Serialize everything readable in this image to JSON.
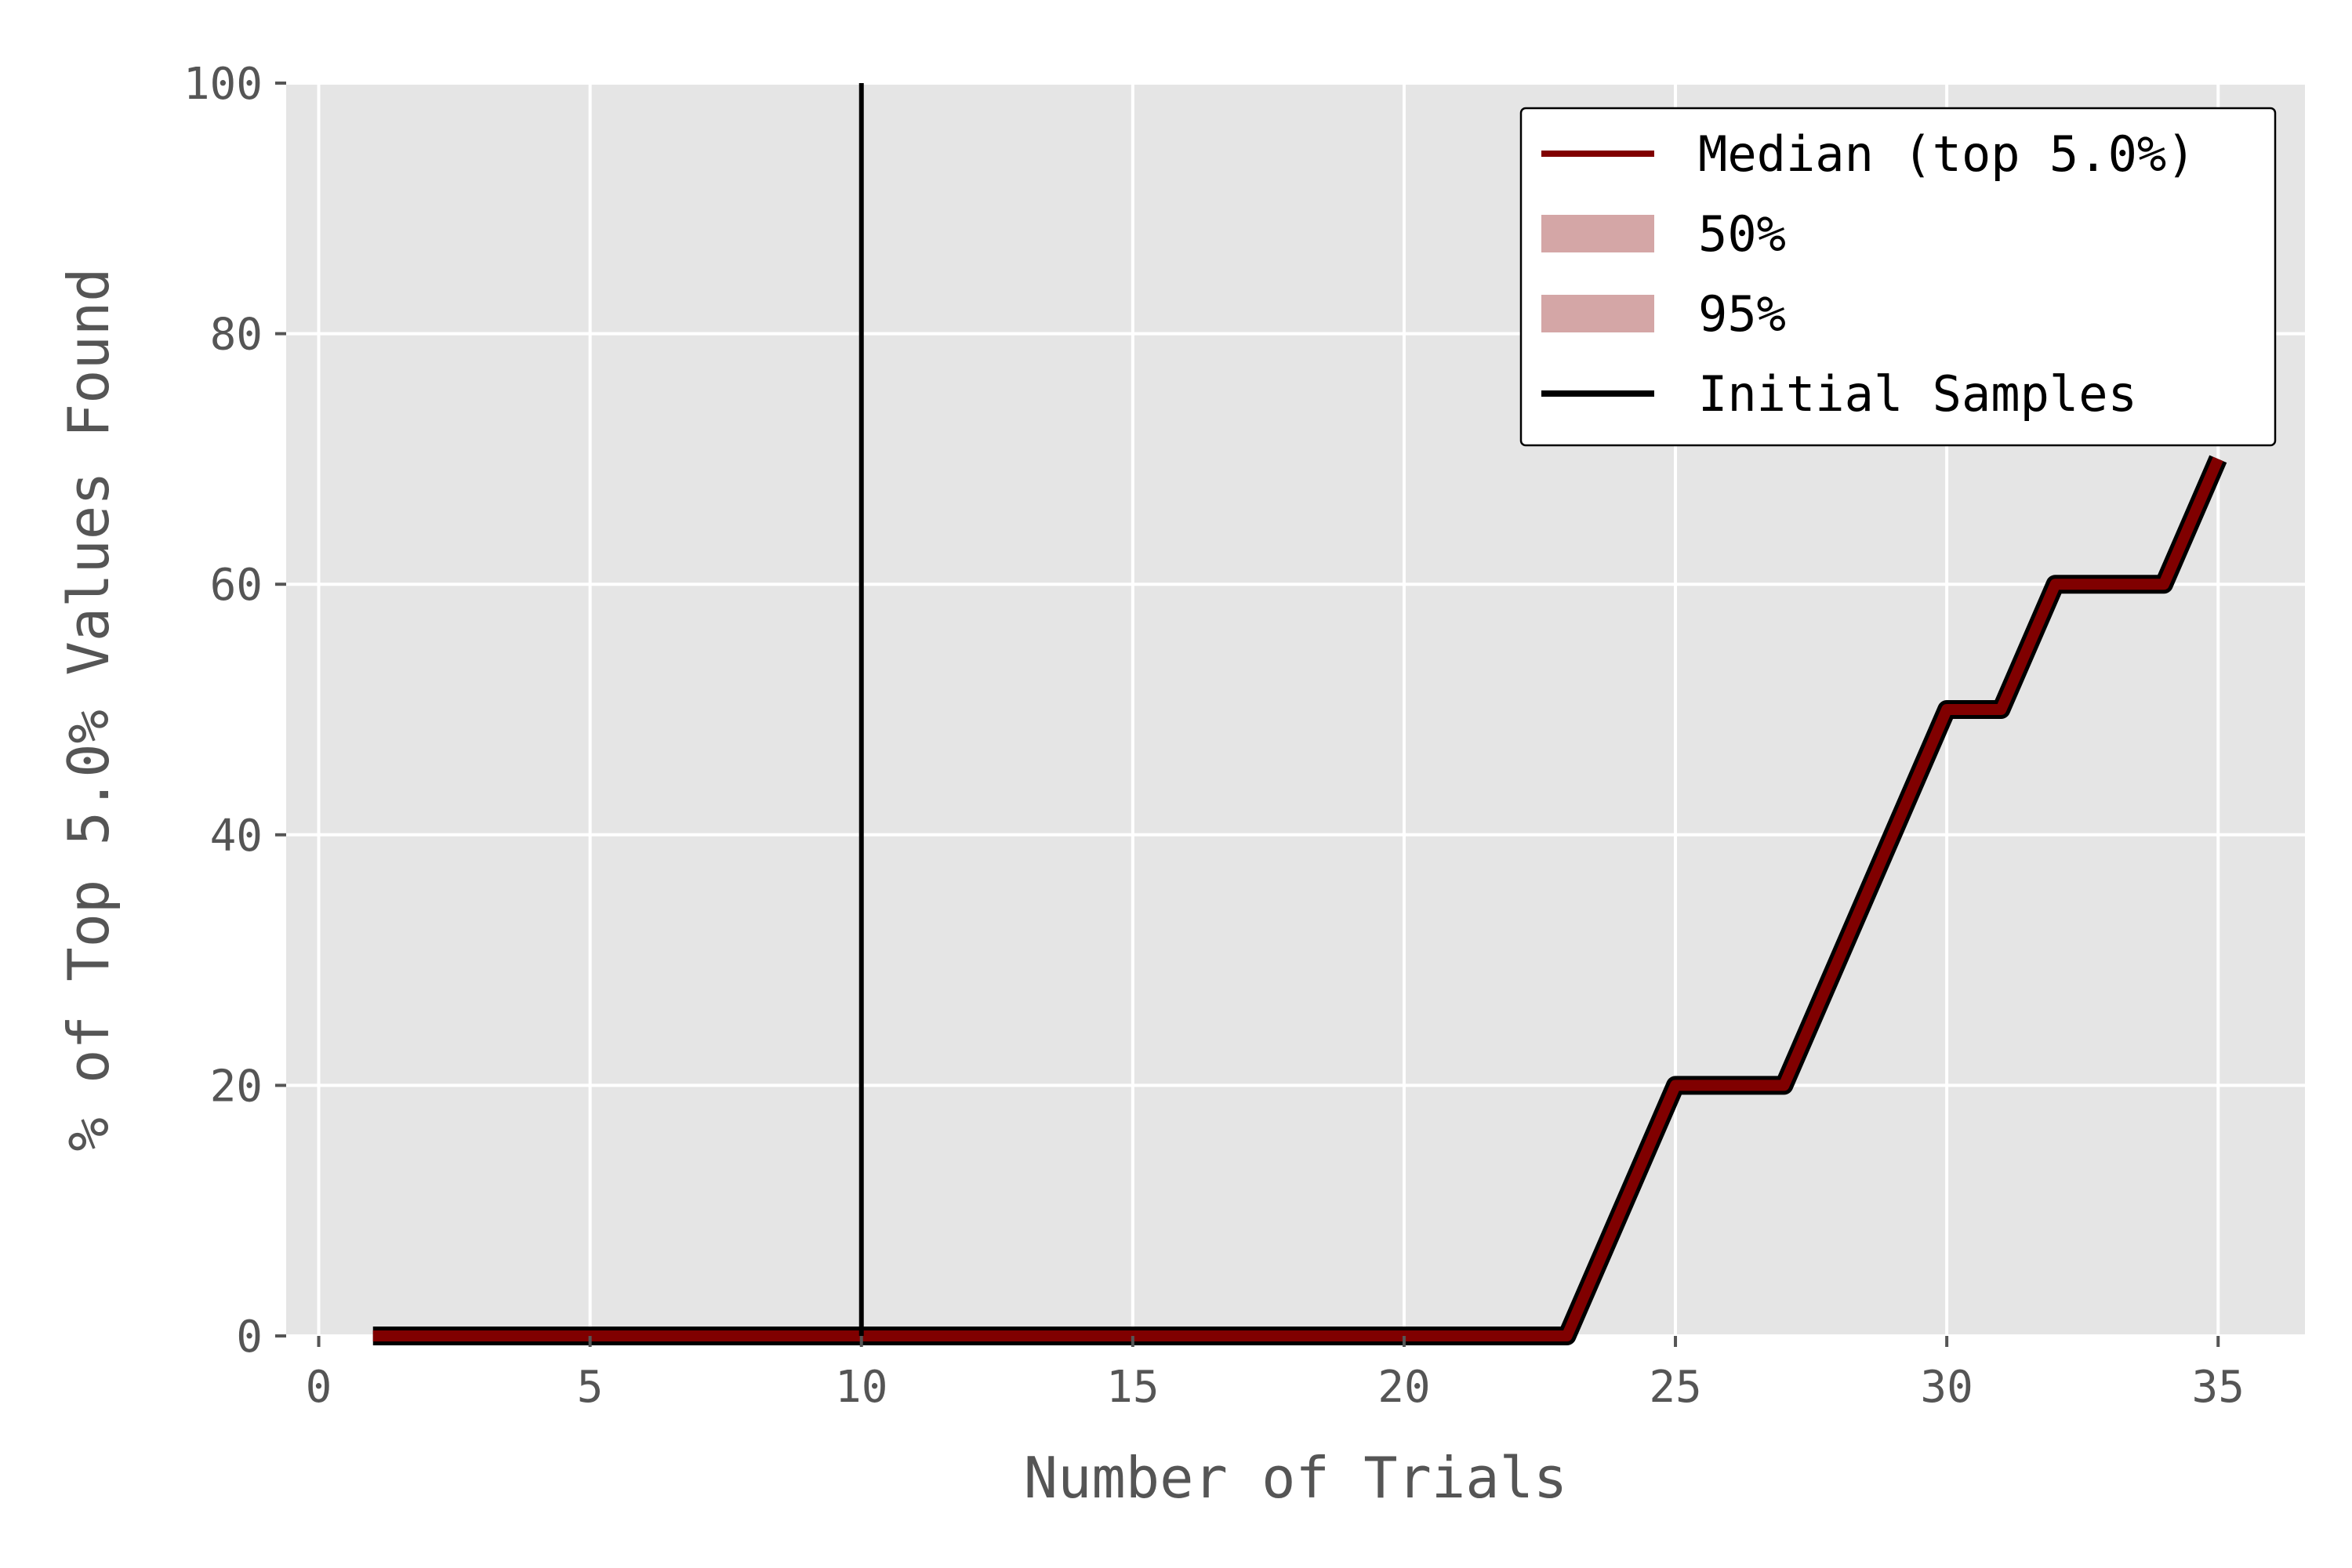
{
  "chart_data": {
    "type": "line",
    "title": "",
    "xlabel": "Number of Trials",
    "ylabel": "% of Top 5.0% Values Found",
    "xlim": [
      -0.6,
      36.6
    ],
    "ylim": [
      0,
      100
    ],
    "xticks": [
      0,
      5,
      10,
      15,
      20,
      25,
      30,
      35
    ],
    "yticks": [
      0,
      20,
      40,
      60,
      80,
      100
    ],
    "grid": true,
    "legend_position": "top-right",
    "initial_samples_x": 10,
    "series": [
      {
        "name": "Median (top 5.0%)",
        "color": "#800000",
        "x": [
          1,
          2,
          3,
          4,
          5,
          6,
          7,
          8,
          9,
          10,
          11,
          12,
          13,
          14,
          15,
          16,
          17,
          18,
          19,
          20,
          21,
          22,
          23,
          24,
          25,
          26,
          27,
          28,
          29,
          30,
          31,
          32,
          33,
          34,
          35
        ],
        "y": [
          0,
          0,
          0,
          0,
          0,
          0,
          0,
          0,
          0,
          0,
          0,
          0,
          0,
          0,
          0,
          0,
          0,
          0,
          0,
          0,
          0,
          0,
          0,
          10,
          20,
          20,
          20,
          30,
          40,
          50,
          50,
          60,
          60,
          60,
          70
        ]
      }
    ],
    "legend": [
      {
        "label": "Median (top 5.0%)",
        "kind": "line",
        "color": "#800000"
      },
      {
        "label": "50%",
        "kind": "patch",
        "color": "#d4a6a6"
      },
      {
        "label": "95%",
        "kind": "patch",
        "color": "#d4a6a6"
      },
      {
        "label": "Initial Samples",
        "kind": "line",
        "color": "#000000"
      }
    ]
  }
}
